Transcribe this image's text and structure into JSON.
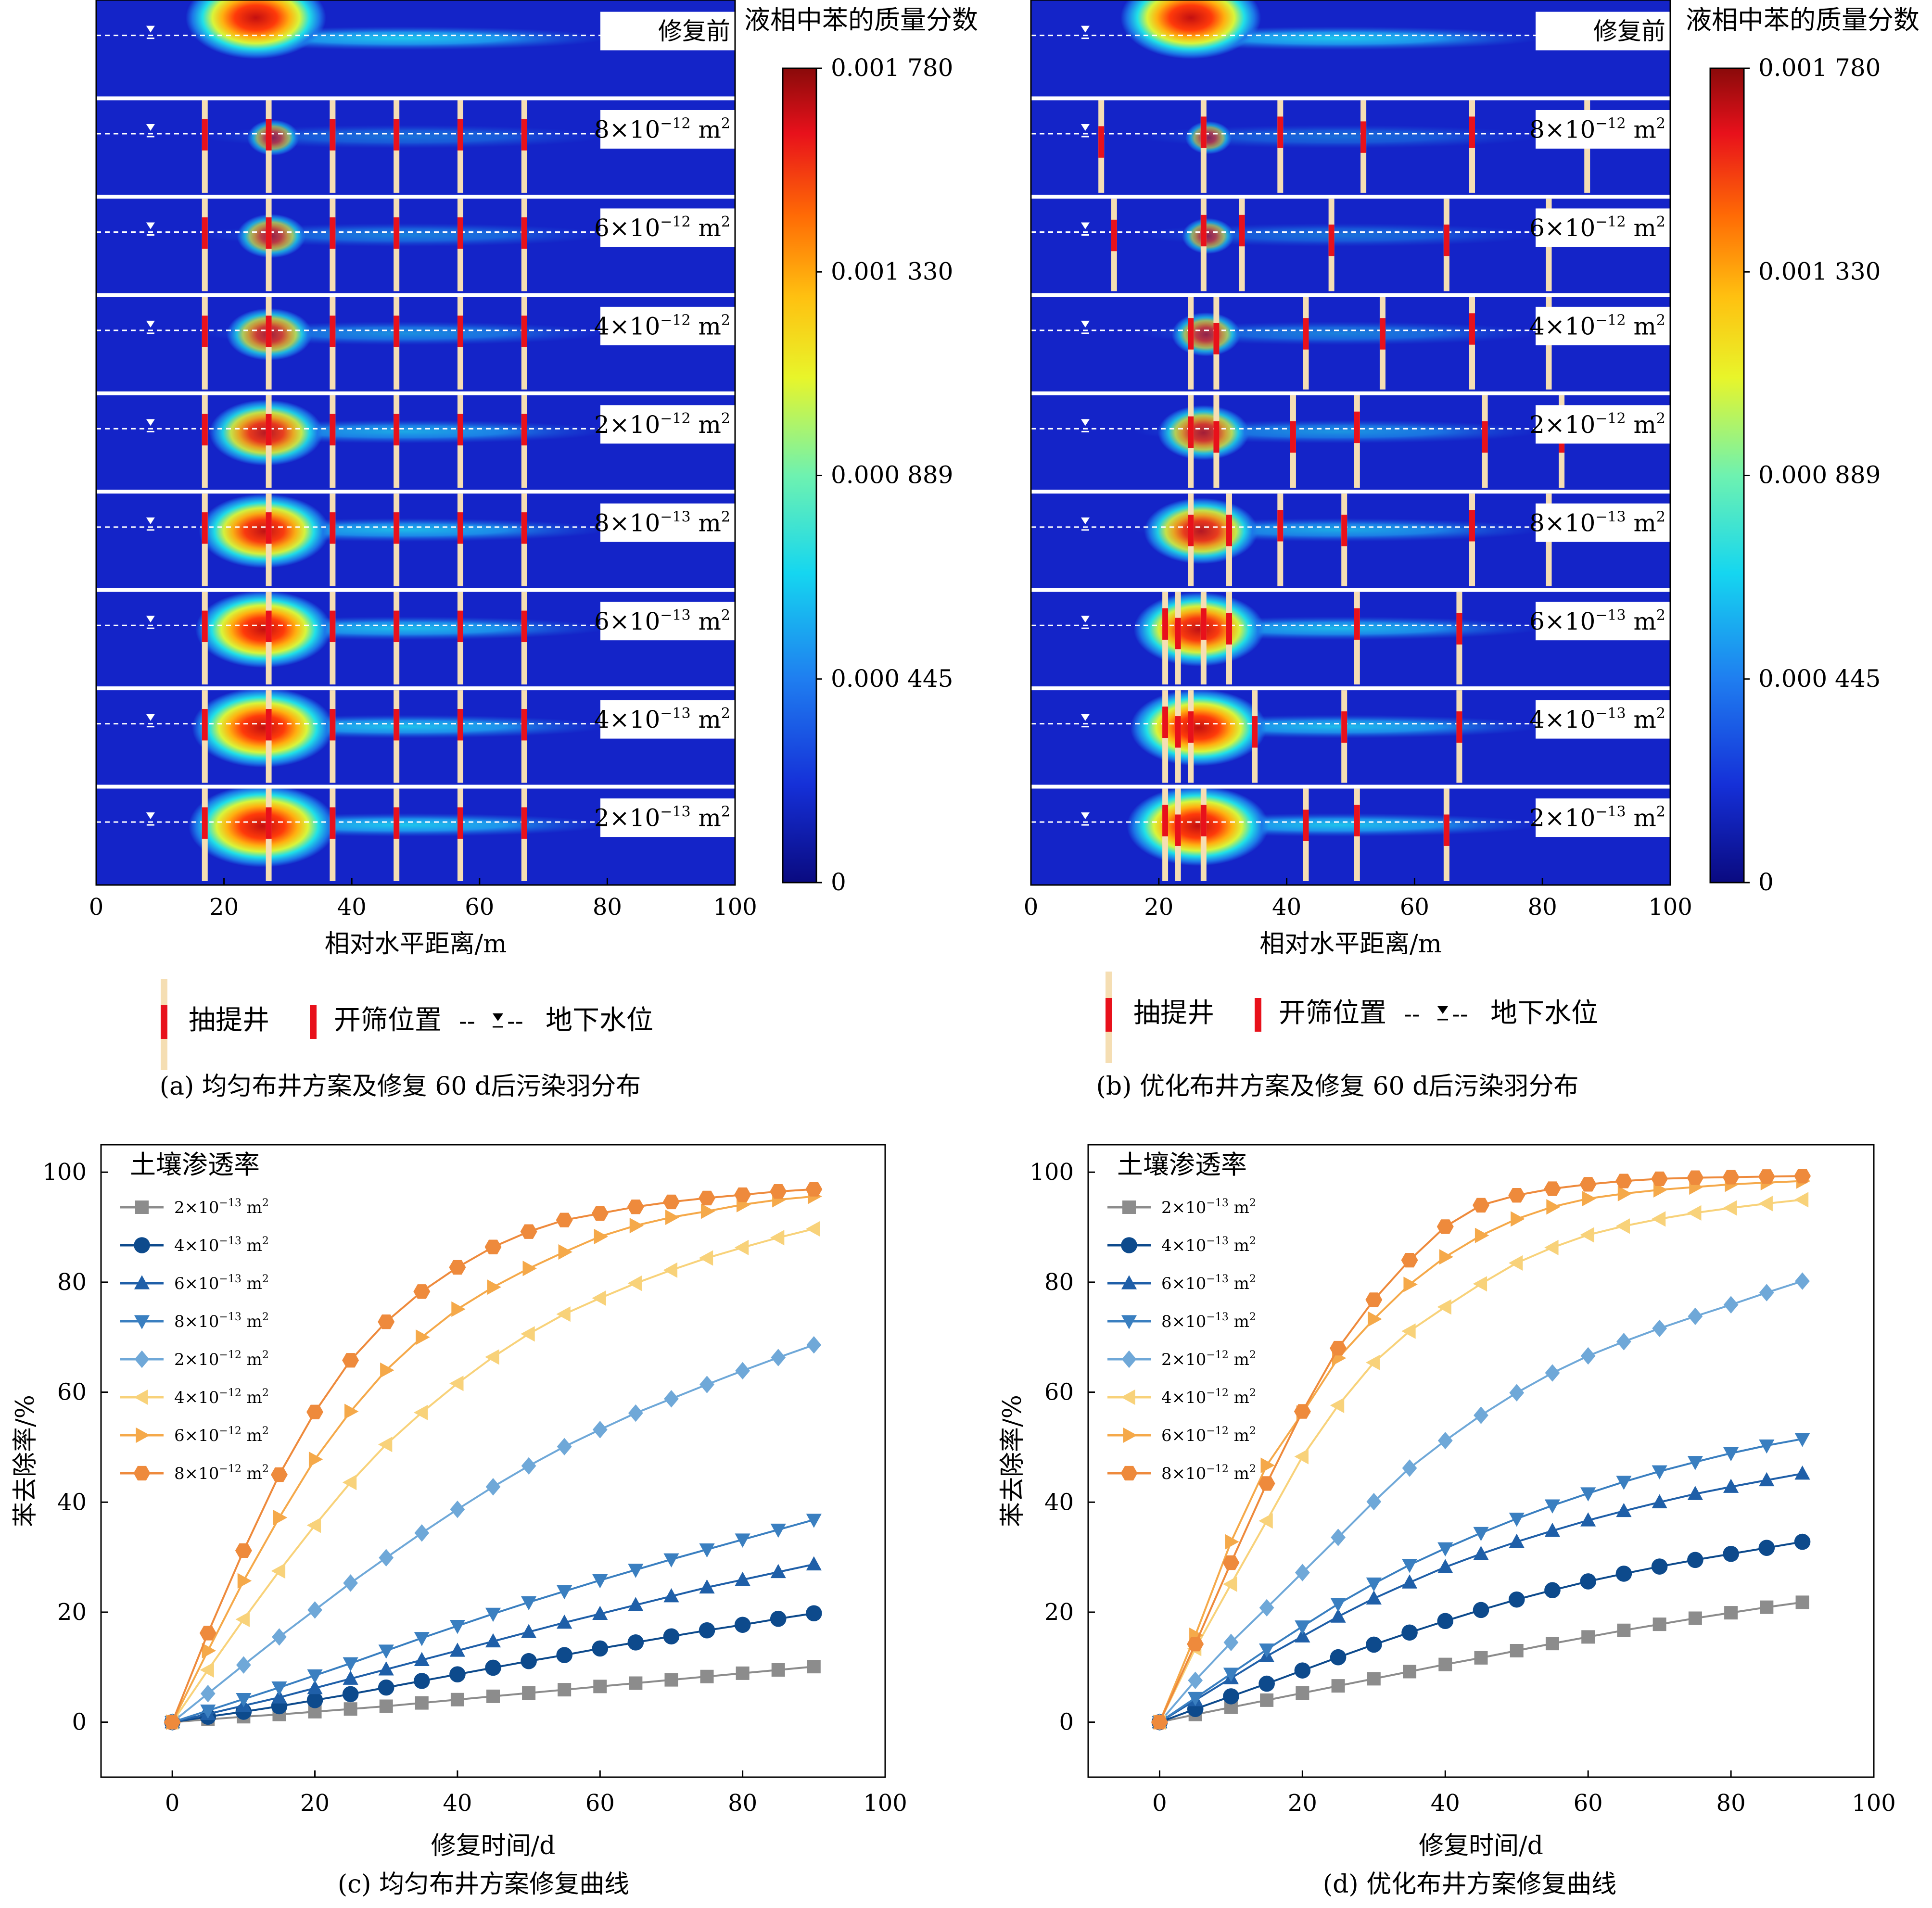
{
  "legend_top": {
    "well_label": "抽提井",
    "screen_label": "开筛位置",
    "water_table_label": "地下水位",
    "water_table_dashes_left": "--",
    "water_table_dashes_right": "--"
  },
  "colorbar": {
    "title": "液相中苯的质量分数",
    "ticks": [
      "0.001 780",
      "0.001 330",
      "0.000 889",
      "0.000 445",
      "0"
    ]
  },
  "colors": {
    "plume_background": "#1424c8",
    "well": "#f5deb3",
    "screen": "#e8111b",
    "series": [
      "#8c8c8c",
      "#0d4a8c",
      "#1f5fa8",
      "#3a7fc0",
      "#6fa8d8",
      "#f8d27a",
      "#f5a94a",
      "#ee8a3c"
    ]
  },
  "chart_data": [
    {
      "type": "heatmap",
      "panel_caption": "(a) 均匀布井方案及修复 60 d后污染羽分布",
      "xlabel": "相对水平距离/m",
      "xlim": [
        0,
        100
      ],
      "xticks": [
        "0",
        "20",
        "40",
        "60",
        "80",
        "100"
      ],
      "colorbar_range": [
        0,
        0.00178
      ],
      "rows": [
        {
          "label": "修复前",
          "exp": null,
          "wells_m": [],
          "plume_intensity": 1.0
        },
        {
          "label": "8×10",
          "exp": "−12",
          "unit": " m",
          "sup2": "2",
          "wells_m": [
            17,
            27,
            37,
            47,
            57,
            67
          ],
          "plume_intensity": 0.15
        },
        {
          "label": "6×10",
          "exp": "−12",
          "unit": " m",
          "sup2": "2",
          "wells_m": [
            17,
            27,
            37,
            47,
            57,
            67
          ],
          "plume_intensity": 0.3
        },
        {
          "label": "4×10",
          "exp": "−12",
          "unit": " m",
          "sup2": "2",
          "wells_m": [
            17,
            27,
            37,
            47,
            57,
            67
          ],
          "plume_intensity": 0.45
        },
        {
          "label": "2×10",
          "exp": "−12",
          "unit": " m",
          "sup2": "2",
          "wells_m": [
            17,
            27,
            37,
            47,
            57,
            67
          ],
          "plume_intensity": 0.7
        },
        {
          "label": "8×10",
          "exp": "−13",
          "unit": " m",
          "sup2": "2",
          "wells_m": [
            17,
            27,
            37,
            47,
            57,
            67
          ],
          "plume_intensity": 0.85
        },
        {
          "label": "6×10",
          "exp": "−13",
          "unit": " m",
          "sup2": "2",
          "wells_m": [
            17,
            27,
            37,
            47,
            57,
            67
          ],
          "plume_intensity": 0.9
        },
        {
          "label": "4×10",
          "exp": "−13",
          "unit": " m",
          "sup2": "2",
          "wells_m": [
            17,
            27,
            37,
            47,
            57,
            67
          ],
          "plume_intensity": 0.95
        },
        {
          "label": "2×10",
          "exp": "−13",
          "unit": " m",
          "sup2": "2",
          "wells_m": [
            17,
            27,
            37,
            47,
            57,
            67
          ],
          "plume_intensity": 1.0
        }
      ]
    },
    {
      "type": "heatmap",
      "panel_caption": "(b) 优化布井方案及修复 60 d后污染羽分布",
      "xlabel": "相对水平距离/m",
      "xlim": [
        0,
        100
      ],
      "xticks": [
        "0",
        "20",
        "40",
        "60",
        "80",
        "100"
      ],
      "colorbar_range": [
        0,
        0.00178
      ],
      "rows": [
        {
          "label": "修复前",
          "exp": null,
          "wells_m": [],
          "plume_intensity": 1.0
        },
        {
          "label": "8×10",
          "exp": "−12",
          "unit": " m",
          "sup2": "2",
          "wells_m": [
            11,
            27,
            39,
            52,
            69,
            87
          ],
          "plume_intensity": 0.1
        },
        {
          "label": "6×10",
          "exp": "−12",
          "unit": " m",
          "sup2": "2",
          "wells_m": [
            13,
            27,
            33,
            47,
            65,
            81
          ],
          "plume_intensity": 0.15
        },
        {
          "label": "4×10",
          "exp": "−12",
          "unit": " m",
          "sup2": "2",
          "wells_m": [
            25,
            29,
            43,
            55,
            69,
            81
          ],
          "plume_intensity": 0.3
        },
        {
          "label": "2×10",
          "exp": "−12",
          "unit": " m",
          "sup2": "2",
          "wells_m": [
            25,
            29,
            41,
            51,
            71,
            83
          ],
          "plume_intensity": 0.5
        },
        {
          "label": "8×10",
          "exp": "−13",
          "unit": " m",
          "sup2": "2",
          "wells_m": [
            25,
            31,
            39,
            49,
            69,
            81
          ],
          "plume_intensity": 0.7
        },
        {
          "label": "6×10",
          "exp": "−13",
          "unit": " m",
          "sup2": "2",
          "wells_m": [
            21,
            23,
            27,
            31,
            51,
            67
          ],
          "plume_intensity": 0.85
        },
        {
          "label": "4×10",
          "exp": "−13",
          "unit": " m",
          "sup2": "2",
          "wells_m": [
            21,
            23,
            25,
            35,
            49,
            67
          ],
          "plume_intensity": 0.9
        },
        {
          "label": "2×10",
          "exp": "−13",
          "unit": " m",
          "sup2": "2",
          "wells_m": [
            21,
            23,
            27,
            43,
            51,
            65
          ],
          "plume_intensity": 0.95
        }
      ]
    },
    {
      "type": "line",
      "panel_caption": "(c) 均匀布井方案修复曲线",
      "xlabel": "修复时间/d",
      "ylabel": "苯去除率/%",
      "xlim": [
        -10,
        100
      ],
      "ylim": [
        -10,
        105
      ],
      "xticks": [
        "0",
        "20",
        "40",
        "60",
        "80",
        "100"
      ],
      "yticks": [
        "0",
        "20",
        "40",
        "60",
        "80",
        "100"
      ],
      "legend_title": "土壤渗透率",
      "x": [
        0,
        5,
        10,
        15,
        20,
        25,
        30,
        35,
        40,
        45,
        50,
        55,
        60,
        65,
        70,
        75,
        80,
        85,
        90
      ],
      "series": [
        {
          "name": "2×10",
          "exp": "−13",
          "unit": " m",
          "sup2": "2",
          "marker": "square",
          "values": [
            0,
            0.5,
            1.0,
            1.4,
            1.9,
            2.4,
            2.9,
            3.5,
            4.1,
            4.7,
            5.3,
            5.9,
            6.5,
            7.1,
            7.7,
            8.3,
            8.9,
            9.5,
            10.1
          ]
        },
        {
          "name": "4×10",
          "exp": "−13",
          "unit": " m",
          "sup2": "2",
          "marker": "circle",
          "values": [
            0,
            1.0,
            1.9,
            2.9,
            4.0,
            5.1,
            6.3,
            7.5,
            8.7,
            9.9,
            11.1,
            12.2,
            13.4,
            14.5,
            15.6,
            16.7,
            17.7,
            18.8,
            19.8
          ]
        },
        {
          "name": "6×10",
          "exp": "−13",
          "unit": " m",
          "sup2": "2",
          "marker": "triangle-up",
          "values": [
            0,
            1.5,
            3.0,
            4.5,
            6.2,
            7.9,
            9.6,
            11.3,
            13.0,
            14.7,
            16.4,
            18.1,
            19.7,
            21.3,
            22.9,
            24.5,
            25.9,
            27.3,
            28.7
          ]
        },
        {
          "name": "8×10",
          "exp": "−13",
          "unit": " m",
          "sup2": "2",
          "marker": "triangle-down",
          "values": [
            0,
            2.1,
            4.2,
            6.3,
            8.5,
            10.7,
            13.0,
            15.3,
            17.5,
            19.7,
            21.8,
            23.8,
            25.8,
            27.7,
            29.6,
            31.4,
            33.2,
            35.0,
            36.8
          ]
        },
        {
          "name": "2×10",
          "exp": "−12",
          "unit": " m",
          "sup2": "2",
          "marker": "diamond",
          "values": [
            0,
            5.2,
            10.4,
            15.5,
            20.4,
            25.3,
            29.9,
            34.4,
            38.7,
            42.8,
            46.6,
            50.1,
            53.2,
            56.2,
            58.8,
            61.4,
            63.9,
            66.3,
            68.6
          ]
        },
        {
          "name": "4×10",
          "exp": "−12",
          "unit": " m",
          "sup2": "2",
          "marker": "triangle-left",
          "values": [
            0,
            9.5,
            18.7,
            27.5,
            35.8,
            43.6,
            50.5,
            56.3,
            61.6,
            66.4,
            70.6,
            74.2,
            77.1,
            79.8,
            82.2,
            84.4,
            86.3,
            88.1,
            89.7
          ]
        },
        {
          "name": "6×10",
          "exp": "−12",
          "unit": " m",
          "sup2": "2",
          "marker": "triangle-right",
          "values": [
            0,
            13.0,
            25.7,
            37.2,
            47.8,
            56.5,
            64.0,
            70.0,
            75.1,
            79.1,
            82.5,
            85.5,
            88.3,
            90.3,
            91.8,
            92.9,
            94.1,
            95.0,
            95.6
          ]
        },
        {
          "name": "8×10",
          "exp": "−12",
          "unit": " m",
          "sup2": "2",
          "marker": "hexagon",
          "values": [
            0,
            16.2,
            31.2,
            45.0,
            56.4,
            65.8,
            72.8,
            78.3,
            82.7,
            86.4,
            89.2,
            91.3,
            92.5,
            93.7,
            94.6,
            95.3,
            95.9,
            96.5,
            96.9
          ]
        }
      ]
    },
    {
      "type": "line",
      "panel_caption": "(d) 优化布井方案修复曲线",
      "xlabel": "修复时间/d",
      "ylabel": "苯去除率/%",
      "xlim": [
        -10,
        100
      ],
      "ylim": [
        -10,
        105
      ],
      "xticks": [
        "0",
        "20",
        "40",
        "60",
        "80",
        "100"
      ],
      "yticks": [
        "0",
        "20",
        "40",
        "60",
        "80",
        "100"
      ],
      "legend_title": "土壤渗透率",
      "x": [
        0,
        5,
        10,
        15,
        20,
        25,
        30,
        35,
        40,
        45,
        50,
        55,
        60,
        65,
        70,
        75,
        80,
        85,
        90
      ],
      "series": [
        {
          "name": "2×10",
          "exp": "−13",
          "unit": " m",
          "sup2": "2",
          "marker": "square",
          "values": [
            0,
            1.4,
            2.7,
            4.0,
            5.3,
            6.6,
            7.9,
            9.2,
            10.5,
            11.7,
            13.0,
            14.3,
            15.5,
            16.7,
            17.8,
            18.9,
            19.9,
            20.9,
            21.8
          ]
        },
        {
          "name": "4×10",
          "exp": "−13",
          "unit": " m",
          "sup2": "2",
          "marker": "circle",
          "values": [
            0,
            2.4,
            4.7,
            7.0,
            9.4,
            11.8,
            14.1,
            16.3,
            18.4,
            20.4,
            22.3,
            24.0,
            25.6,
            27.0,
            28.3,
            29.5,
            30.6,
            31.7,
            32.8
          ]
        },
        {
          "name": "6×10",
          "exp": "−13",
          "unit": " m",
          "sup2": "2",
          "marker": "triangle-up",
          "values": [
            0,
            4.0,
            8.0,
            12.0,
            15.6,
            19.2,
            22.5,
            25.4,
            28.2,
            30.6,
            32.8,
            34.8,
            36.7,
            38.4,
            40.0,
            41.5,
            42.8,
            44.0,
            45.2
          ]
        },
        {
          "name": "8×10",
          "exp": "−13",
          "unit": " m",
          "sup2": "2",
          "marker": "triangle-down",
          "values": [
            0,
            4.4,
            8.8,
            13.2,
            17.4,
            21.5,
            25.2,
            28.6,
            31.6,
            34.4,
            37.0,
            39.4,
            41.6,
            43.7,
            45.6,
            47.3,
            48.9,
            50.3,
            51.5
          ]
        },
        {
          "name": "2×10",
          "exp": "−12",
          "unit": " m",
          "sup2": "2",
          "marker": "diamond",
          "values": [
            0,
            7.6,
            14.5,
            20.8,
            27.2,
            33.6,
            40.1,
            46.2,
            51.2,
            55.8,
            59.9,
            63.5,
            66.6,
            69.2,
            71.6,
            73.8,
            75.9,
            78.1,
            80.2
          ]
        },
        {
          "name": "4×10",
          "exp": "−12",
          "unit": " m",
          "sup2": "2",
          "marker": "triangle-left",
          "values": [
            0,
            13.4,
            25.1,
            36.6,
            48.3,
            57.6,
            65.4,
            71.1,
            75.5,
            79.7,
            83.5,
            86.3,
            88.6,
            90.2,
            91.5,
            92.6,
            93.5,
            94.3,
            95.0
          ]
        },
        {
          "name": "6×10",
          "exp": "−12",
          "unit": " m",
          "sup2": "2",
          "marker": "triangle-right",
          "values": [
            0,
            15.8,
            32.8,
            46.7,
            56.2,
            66.2,
            73.3,
            79.6,
            84.6,
            88.5,
            91.5,
            93.7,
            95.2,
            96.1,
            96.8,
            97.3,
            97.8,
            98.1,
            98.4
          ]
        },
        {
          "name": "8×10",
          "exp": "−12",
          "unit": " m",
          "sup2": "2",
          "marker": "hexagon",
          "values": [
            0,
            14.2,
            29.0,
            43.4,
            56.5,
            68.0,
            76.8,
            84.0,
            90.1,
            94.0,
            95.8,
            97.0,
            97.8,
            98.4,
            98.8,
            99.0,
            99.1,
            99.2,
            99.3
          ]
        }
      ]
    }
  ]
}
